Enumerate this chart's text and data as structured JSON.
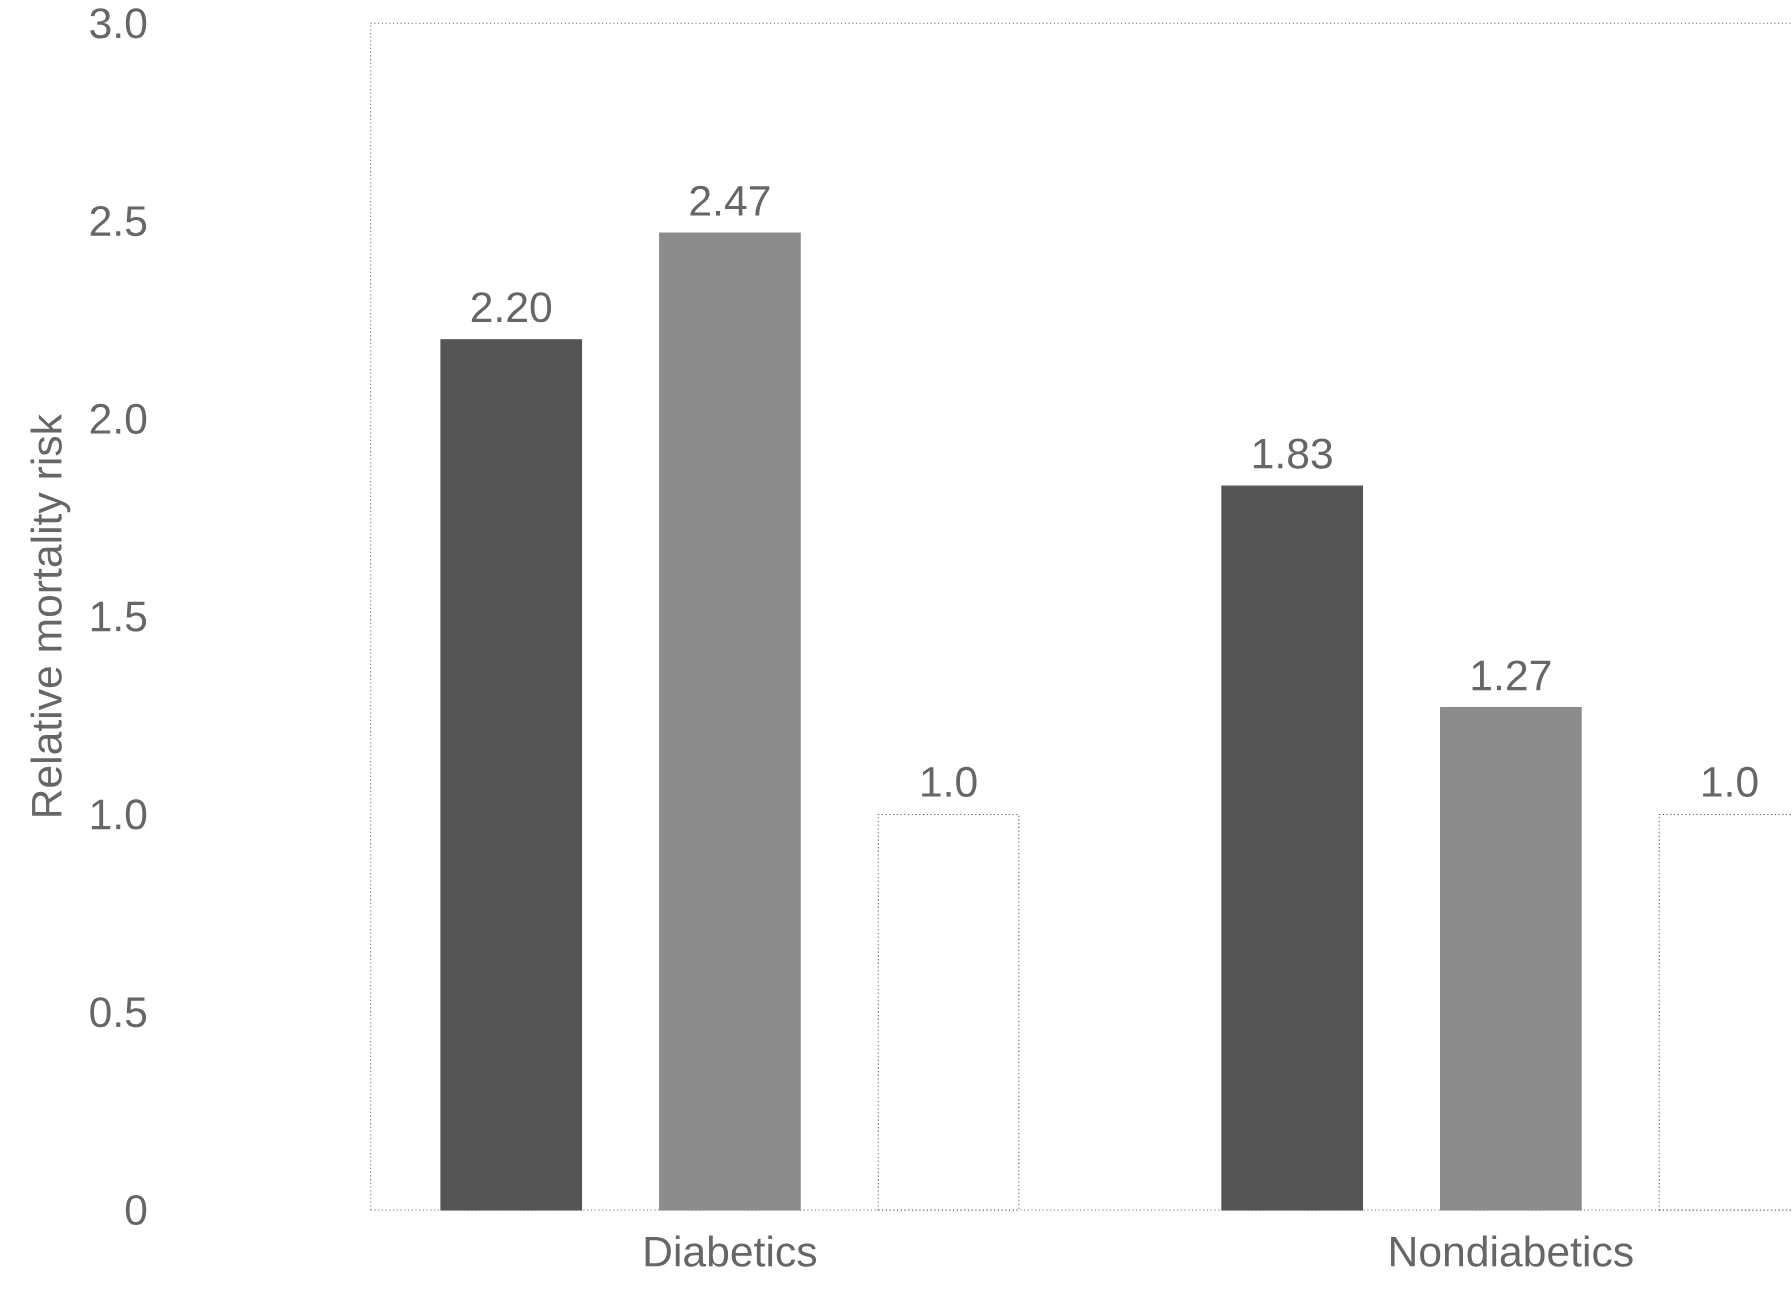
{
  "chart_data": {
    "type": "bar",
    "ylabel": "Relative mortality risk",
    "categories": [
      "Diabetics",
      "Nondiabetics"
    ],
    "series": [
      {
        "color": "#555555",
        "values": [
          2.2,
          1.83
        ],
        "value_labels": [
          "2.20",
          "1.83"
        ]
      },
      {
        "color": "#8c8c8c",
        "values": [
          2.47,
          1.27
        ],
        "value_labels": [
          "2.47",
          "1.27"
        ]
      },
      {
        "color": "#ffffff",
        "line_style": "dotted",
        "values": [
          1.0,
          1.0
        ],
        "value_labels": [
          "1.0",
          "1.0"
        ]
      }
    ],
    "ylim": [
      0,
      3.0
    ],
    "yticks": [
      0,
      0.5,
      {
        "value": 1.0,
        "label": "1.0"
      },
      1.5,
      {
        "value": 2.0,
        "label": "2.0"
      },
      2.5,
      {
        "value": 3.0,
        "label": "3.0"
      }
    ],
    "grid": false
  }
}
